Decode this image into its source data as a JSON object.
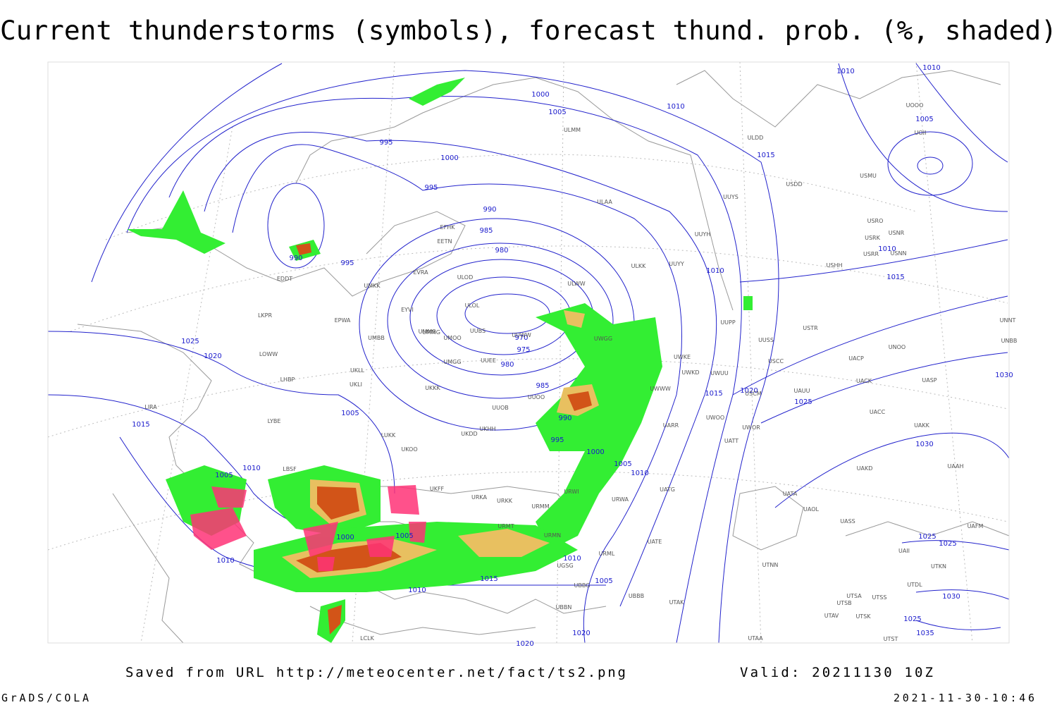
{
  "title": "Current thunderstorms (symbols), forecast thund. prob. (%, shaded)",
  "footer": {
    "source": "Saved from URL  http://meteocenter.net/fact/ts2.png",
    "valid": "Valid: 20211130 10Z",
    "software": "GrADS/COLA",
    "timestamp": "2021-11-30-10:46"
  },
  "isobar_labels": [
    1010,
    1010,
    1000,
    1005,
    1010,
    995,
    1000,
    1005,
    1015,
    995,
    990,
    985,
    980,
    990,
    995,
    1010,
    1010,
    1015,
    970,
    975,
    980,
    985,
    1025,
    1020,
    1005,
    1015,
    1015,
    1020,
    1025,
    990,
    995,
    1000,
    1005,
    1010,
    1030,
    1010,
    1005,
    1000,
    1005,
    1010,
    1010,
    1015,
    1005,
    1010,
    1020,
    1020,
    1025,
    1025,
    1030,
    1025,
    1035,
    1030
  ],
  "stations": [
    "ULMM",
    "ULDD",
    "USDD",
    "USMU",
    "UOOO",
    "UOII",
    "ULAA",
    "UUYS",
    "EFHK",
    "EETN",
    "USRO",
    "USNR",
    "USRK",
    "USRR",
    "USNN",
    "UUYH",
    "ULKK",
    "UUYY",
    "USHH",
    "EVRA",
    "ULOD",
    "EDDT",
    "UMKK",
    "ULWW",
    "EYVI",
    "ULOL",
    "UUWW",
    "UMMS",
    "LKPR",
    "EPWA",
    "UUSS",
    "USTR",
    "UUPP",
    "UNNT",
    "UNBB",
    "UMMG",
    "UMOO",
    "UUBS",
    "UWGG",
    "UNOO",
    "UMBB",
    "LOWW",
    "UWKE",
    "UACP",
    "UUEE",
    "UMGG",
    "UWKD",
    "USCC",
    "UWUU",
    "UKLL",
    "LHBP",
    "UKLI",
    "UACK",
    "UASP",
    "UKKK",
    "UUOO",
    "UWWW",
    "UAUU",
    "USCM",
    "UUOB",
    "LIRA",
    "LYBE",
    "UACC",
    "UAKK",
    "UWOO",
    "UWOR",
    "UARR",
    "UKHH",
    "UKDD",
    "LUKK",
    "UATT",
    "UKOO",
    "LBSF",
    "UAKD",
    "UAAH",
    "UKFF",
    "URKA",
    "URKK",
    "URWI",
    "URWA",
    "UATG",
    "UATA",
    "UAOL",
    "URMM",
    "UASS",
    "UAFM",
    "URMT",
    "URMN",
    "UATE",
    "URML",
    "UGSG",
    "UTNN",
    "UAII",
    "UTKN",
    "UBBG",
    "UTDL",
    "UTAK",
    "UBBB",
    "UTSA",
    "UTSS",
    "UTSB",
    "UBBN",
    "UTAV",
    "UTSK",
    "UTST",
    "LCLK",
    "UTAA"
  ]
}
